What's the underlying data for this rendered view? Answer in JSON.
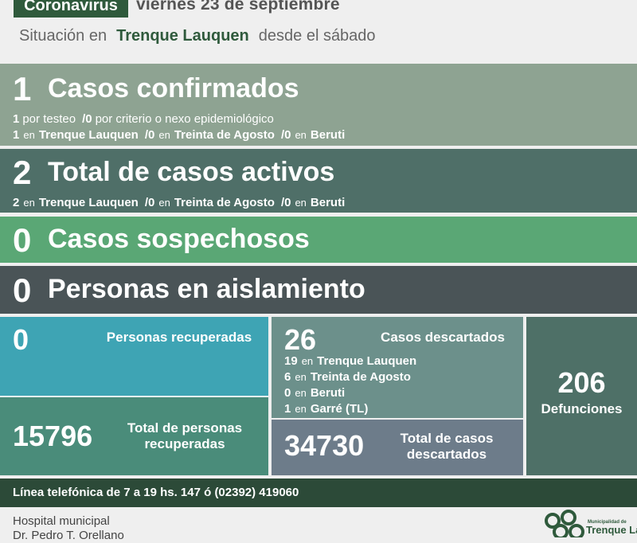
{
  "header": {
    "badge": "Coronavirus",
    "date": "viernes 23 de septiembre",
    "prefix": "Situación en",
    "city": "Trenque Lauquen",
    "suffix": "desde el sábado"
  },
  "separator": "/",
  "confirmed": {
    "count": 1,
    "title": "Casos confirmados",
    "by_type": [
      {
        "count": 1,
        "label": "por testeo"
      },
      {
        "count": 0,
        "label": "por criterio o nexo epidemiológico"
      }
    ],
    "by_place": [
      {
        "count": 1,
        "word": "en",
        "place": "Trenque Lauquen"
      },
      {
        "count": 0,
        "word": "en",
        "place": "Treinta de Agosto"
      },
      {
        "count": 0,
        "word": "en",
        "place": "Beruti"
      }
    ]
  },
  "active": {
    "count": 2,
    "title": "Total de casos activos",
    "by_place": [
      {
        "count": 2,
        "word": "en",
        "place": "Trenque Lauquen"
      },
      {
        "count": 0,
        "word": "en",
        "place": "Treinta de Agosto"
      },
      {
        "count": 0,
        "word": "en",
        "place": "Beruti"
      }
    ]
  },
  "suspected": {
    "count": 0,
    "title": "Casos sospechosos"
  },
  "isolation": {
    "count": 0,
    "title": "Personas en aislamiento"
  },
  "recovered": {
    "count": 0,
    "label": "Personas recuperadas"
  },
  "recovered_total": {
    "count": 15796,
    "label": "Total de personas recuperadas"
  },
  "discarded": {
    "count": 26,
    "label": "Casos descartados",
    "by_place": [
      {
        "count": 19,
        "word": "en",
        "place": "Trenque Lauquen"
      },
      {
        "count": 6,
        "word": "en",
        "place": "Treinta de Agosto"
      },
      {
        "count": 0,
        "word": "en",
        "place": "Beruti"
      },
      {
        "count": 1,
        "word": "en",
        "place": "Garré (TL)"
      }
    ]
  },
  "discarded_total": {
    "count": 34730,
    "label": "Total de casos descartados"
  },
  "deaths": {
    "count": 206,
    "label": "Defunciones"
  },
  "footer": {
    "phone": "Línea telefónica de 7 a 19 hs. 147 ó (02392) 419060"
  },
  "hospital": {
    "line1": "Hospital municipal",
    "line2": "Dr. Pedro T. Orellano"
  },
  "logo": {
    "line1": "Municipalidad de",
    "line2": "Trenque Lauquen"
  }
}
